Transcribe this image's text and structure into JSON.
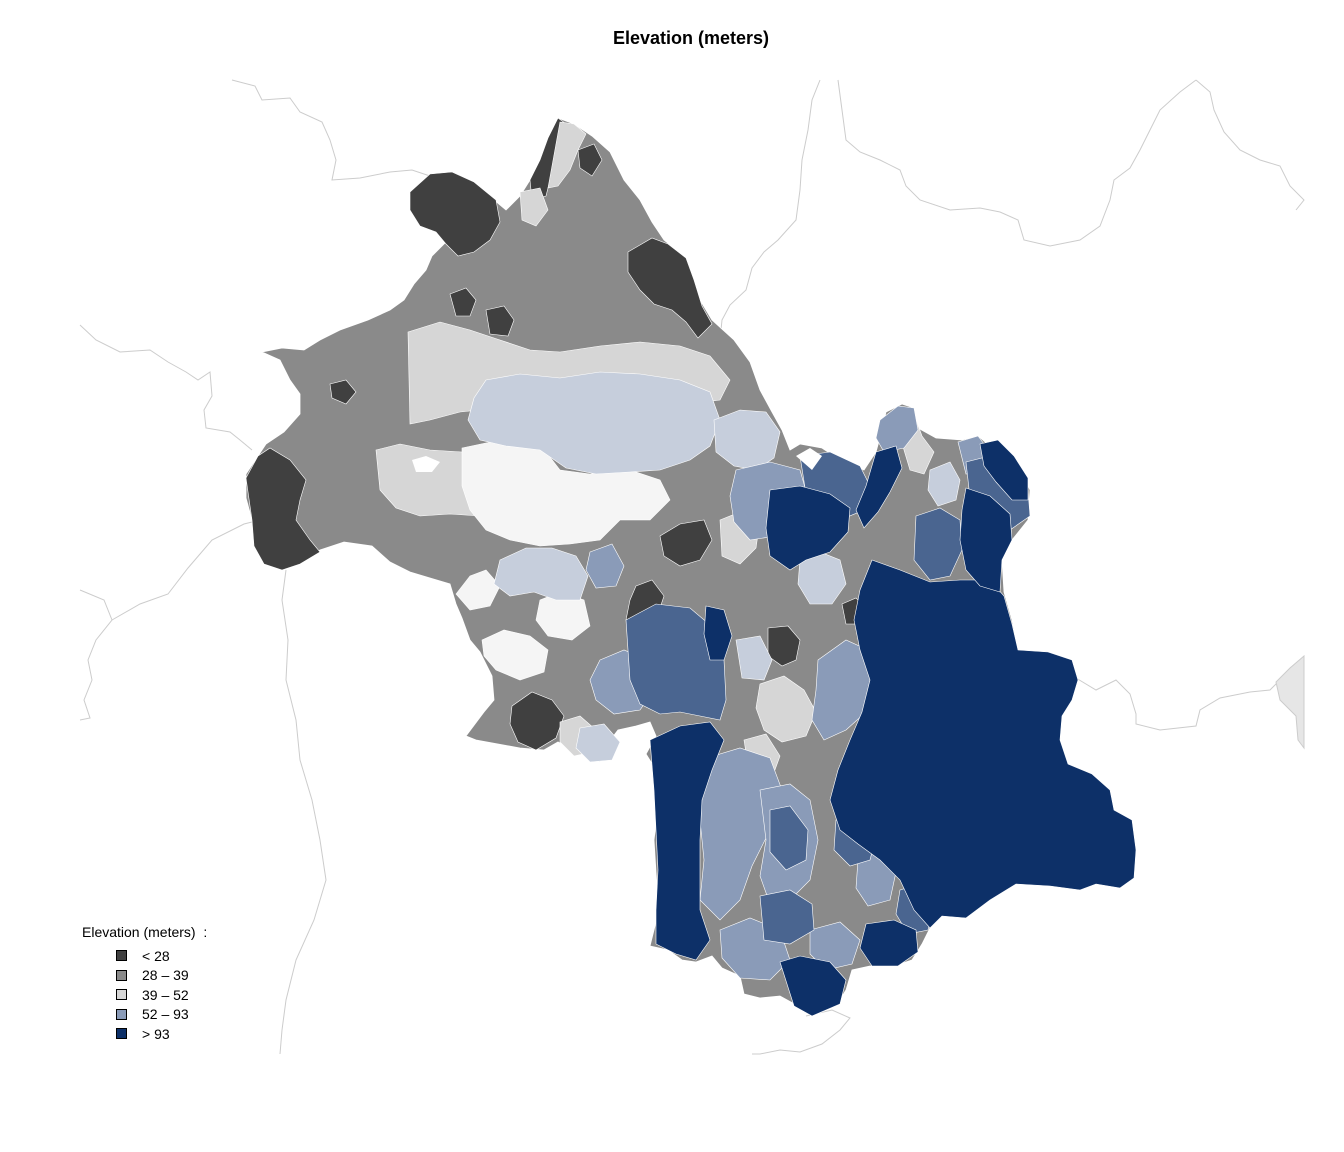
{
  "title": "Elevation (meters)",
  "legend": {
    "title": "Elevation (meters)  :",
    "items": [
      {
        "label": "< 28",
        "color": "#404040"
      },
      {
        "label": "28 – 39",
        "color": "#8a8a8a"
      },
      {
        "label": "39 – 52",
        "color": "#d6d6d6"
      },
      {
        "label": "52 – 93",
        "color": "#8a9bb8"
      },
      {
        "label": "> 93",
        "color": "#0d3068"
      }
    ]
  },
  "colors": {
    "background": "#ffffff",
    "neighbor_border": "#cccccc",
    "neighbor_fill": "#e6e6e6",
    "class_1": "#404040",
    "class_2": "#8a8a8a",
    "class_3": "#d6d6d6",
    "class_3_light": "#f5f5f5",
    "class_4_light": "#c6cedc",
    "class_4": "#8a9bb8",
    "class_4_mid": "#4a6590",
    "class_5": "#0d3068"
  }
}
